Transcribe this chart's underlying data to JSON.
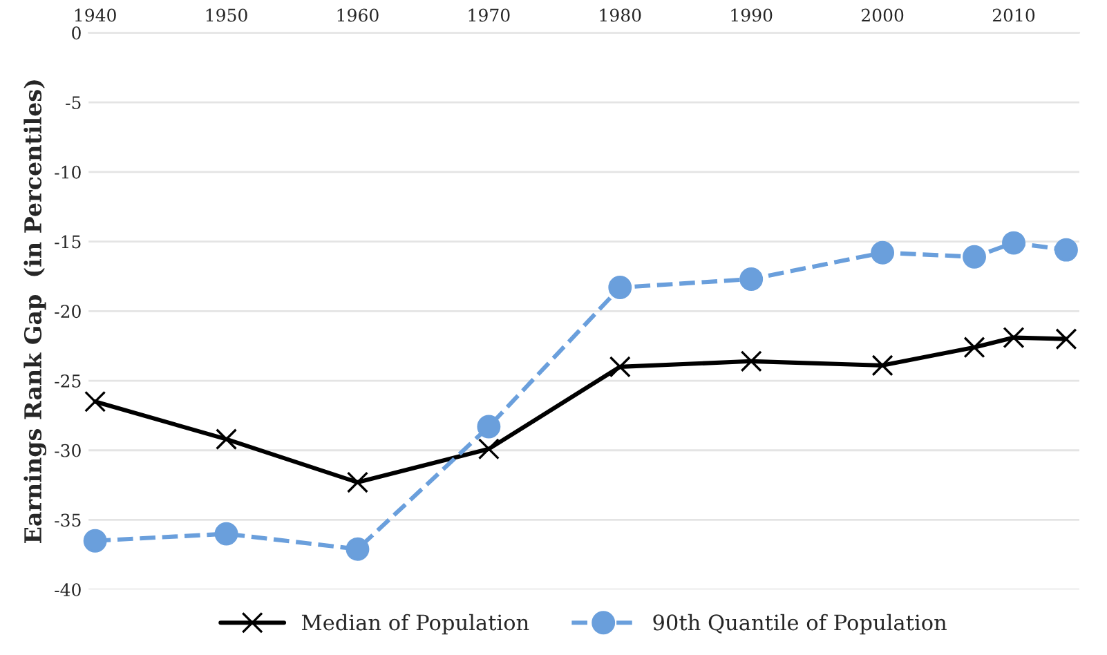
{
  "chart_data": {
    "type": "line",
    "ylabel": "Earnings Rank Gap  (in Percentiles)",
    "x": [
      1940,
      1950,
      1960,
      1970,
      1980,
      1990,
      2000,
      2007,
      2010,
      2014
    ],
    "series": [
      {
        "name": "Median of Population",
        "color": "#000000",
        "marker": "cross",
        "line_style": "solid",
        "values": [
          -26.5,
          -29.2,
          -32.3,
          -29.9,
          -24.0,
          -23.6,
          -23.9,
          -22.6,
          -21.9,
          -22.0
        ]
      },
      {
        "name": "90th Quantile of Population",
        "color": "#6a9fdc",
        "marker": "circle",
        "line_style": "dashed",
        "values": [
          -36.5,
          -36.0,
          -37.1,
          -28.3,
          -18.3,
          -17.7,
          -15.8,
          -16.1,
          -15.1,
          -15.6
        ]
      }
    ],
    "xlim": [
      1939.5,
      2015
    ],
    "xticks": [
      1940,
      1950,
      1960,
      1970,
      1980,
      1990,
      2000,
      2010
    ],
    "ylim": [
      -40,
      0
    ],
    "yticks": [
      0,
      -5,
      -10,
      -15,
      -20,
      -25,
      -30,
      -35,
      -40
    ],
    "grid": "y",
    "legend": "bottom"
  }
}
